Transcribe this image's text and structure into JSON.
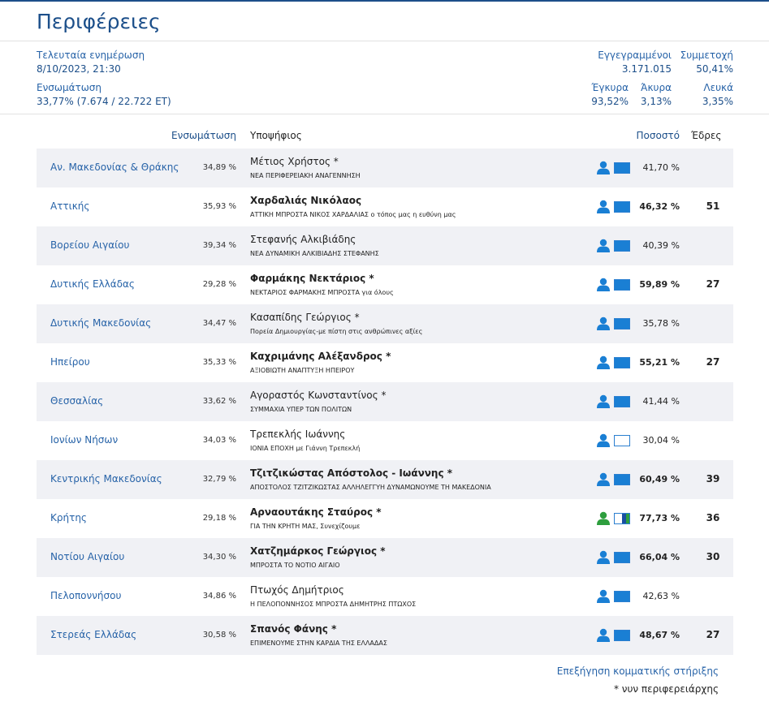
{
  "header": {
    "title": "Περιφέρειες"
  },
  "stats": {
    "last_update_label": "Τελευταία ενημέρωση",
    "last_update": "8/10/2023, 21:30",
    "counted_label": "Ενσωμάτωση",
    "counted": "33,77% (7.674 / 22.722 ΕΤ)",
    "registered_label": "Εγγεγραμμένοι",
    "registered": "3.171.015",
    "turnout_label": "Συμμετοχή",
    "turnout": "50,41%",
    "valid_label": "Έγκυρα",
    "valid": "93,52%",
    "invalid_label": "Άκυρα",
    "invalid": "3,13%",
    "blank_label": "Λευκά",
    "blank": "3,35%"
  },
  "table": {
    "columns": [
      "Ενσωμάτωση",
      "Υποψήφιος",
      "Ποσοστό",
      "Έδρες"
    ],
    "rows": [
      {
        "region": "Αν. Μακεδονίας & Θράκης",
        "counted": "34,89 %",
        "candidate": "Μέτιος Χρήστος *",
        "party": "ΝΕΑ ΠΕΡΙΦΕΡΕΙΑΚΗ ΑΝΑΓΕΝΝΗΣΗ",
        "percent": "41,70 %",
        "colors": [
          "#1a7fd4"
        ],
        "icon_color": "#1a7fd4"
      },
      {
        "region": "Αττικής",
        "counted": "35,93 %",
        "candidate": "Χαρδαλιάς Νικόλαος",
        "party": "ΑΤΤΙΚΗ ΜΠΡΟΣΤΑ ΝΙΚΟΣ ΧΑΡΔΑΛΙΑΣ ο τόπος μας η ευθύνη μας",
        "percent": "46,32 %",
        "seats": 51,
        "colors": [
          "#1a7fd4"
        ],
        "icon_color": "#1a7fd4"
      },
      {
        "region": "Βορείου Αιγαίου",
        "counted": "39,34 %",
        "candidate": "Στεφανής Αλκιβιάδης",
        "party": "ΝΕΑ ΔΥΝΑΜΙΚΗ ΑΛΚΙΒΙΑΔΗΣ ΣΤΕΦΑΝΗΣ",
        "percent": "40,39 %",
        "colors": [
          "#1a7fd4"
        ],
        "icon_color": "#1a7fd4"
      },
      {
        "region": "Δυτικής Ελλάδας",
        "counted": "29,28 %",
        "candidate": "Φαρμάκης Νεκτάριος *",
        "party": "ΝΕΚΤΑΡΙΟΣ ΦΑΡΜΑΚΗΣ ΜΠΡΟΣΤΑ για όλους",
        "percent": "59,89 %",
        "seats": 27,
        "colors": [
          "#1a7fd4"
        ],
        "icon_color": "#1a7fd4"
      },
      {
        "region": "Δυτικής Μακεδονίας",
        "counted": "34,47 %",
        "candidate": "Κασαπίδης Γεώργιος *",
        "party": "Πορεία Δημιουργίας-με πίστη στις ανθρώπινες αξίες",
        "percent": "35,78 %",
        "colors": [
          "#1a7fd4"
        ],
        "icon_color": "#1a7fd4"
      },
      {
        "region": "Ηπείρου",
        "counted": "35,33 %",
        "candidate": "Καχριμάνης Αλέξανδρος *",
        "party": "ΑΞΙΟΒΙΩΤΗ ΑΝΑΠΤΥΞΗ ΗΠΕΙΡΟΥ",
        "percent": "55,21 %",
        "seats": 27,
        "colors": [
          "#1a7fd4"
        ],
        "icon_color": "#1a7fd4"
      },
      {
        "region": "Θεσσαλίας",
        "counted": "33,62 %",
        "candidate": "Αγοραστός Κωνσταντίνος *",
        "party": "ΣΥΜΜΑΧΙΑ ΥΠΕΡ ΤΩΝ ΠΟΛΙΤΩΝ",
        "percent": "41,44 %",
        "colors": [
          "#1a7fd4"
        ],
        "icon_color": "#1a7fd4"
      },
      {
        "region": "Ιονίων Νήσων",
        "counted": "34,03 %",
        "candidate": "Τρεπεκλής Ιωάννης",
        "party": "ΙΟΝΙΑ ΕΠΟΧΗ με Γιάννη Τρεπεκλή",
        "percent": "30,04 %",
        "colors": [
          "#ffffff"
        ],
        "icon_color": "#1a7fd4"
      },
      {
        "region": "Κεντρικής Μακεδονίας",
        "counted": "32,79 %",
        "candidate": "Τζιτζικώστας Απόστολος - Ιωάννης *",
        "party": "ΑΠΟΣΤΟΛΟΣ ΤΖΙΤΖΙΚΩΣΤΑΣ ΑΛΛΗΛΕΓΓΥΗ ΔΥΝΑΜΩΝΟΥΜΕ ΤΗ ΜΑΚΕΔΟΝΙΑ",
        "percent": "60,49 %",
        "seats": 39,
        "colors": [
          "#1a7fd4"
        ],
        "icon_color": "#1a7fd4"
      },
      {
        "region": "Κρήτης",
        "counted": "29,18 %",
        "candidate": "Αρναουτάκης Σταύρος *",
        "party": "ΓΙΑ ΤΗΝ ΚΡΗΤΗ ΜΑΣ, Συνεχίζουμε",
        "percent": "77,73 %",
        "seats": 36,
        "colors": [
          "#ffffff",
          "#ffffff",
          "#1a4fa0",
          "#2e9e3e"
        ],
        "icon_color": "#2e9e3e"
      },
      {
        "region": "Νοτίου Αιγαίου",
        "counted": "34,30 %",
        "candidate": "Χατζημάρκος Γεώργιος *",
        "party": "ΜΠΡΟΣΤΑ ΤΟ ΝΟΤΙΟ ΑΙΓΑΙΟ",
        "percent": "66,04 %",
        "seats": 30,
        "colors": [
          "#1a7fd4"
        ],
        "icon_color": "#1a7fd4"
      },
      {
        "region": "Πελοποννήσου",
        "counted": "34,86 %",
        "candidate": "Πτωχός Δημήτριος",
        "party": "Η ΠΕΛΟΠΟΝΝΗΣΟΣ ΜΠΡΟΣΤΑ ΔΗΜΗΤΡΗΣ ΠΤΩΧΟΣ",
        "percent": "42,63 %",
        "colors": [
          "#1a7fd4"
        ],
        "icon_color": "#1a7fd4"
      },
      {
        "region": "Στερεάς Ελλάδας",
        "counted": "30,58 %",
        "candidate": "Σπανός Φάνης *",
        "party": "ΕΠΙΜΕΝΟΥΜΕ ΣΤΗΝ ΚΑΡΔΙΑ ΤΗΣ ΕΛΛΑΔΑΣ",
        "percent": "48,67 %",
        "seats": 27,
        "colors": [
          "#1a7fd4"
        ],
        "icon_color": "#1a7fd4"
      }
    ]
  },
  "footer": {
    "link": "Επεξήγηση κομματικής στήριξης",
    "note": "* νυν περιφερειάρχης"
  }
}
